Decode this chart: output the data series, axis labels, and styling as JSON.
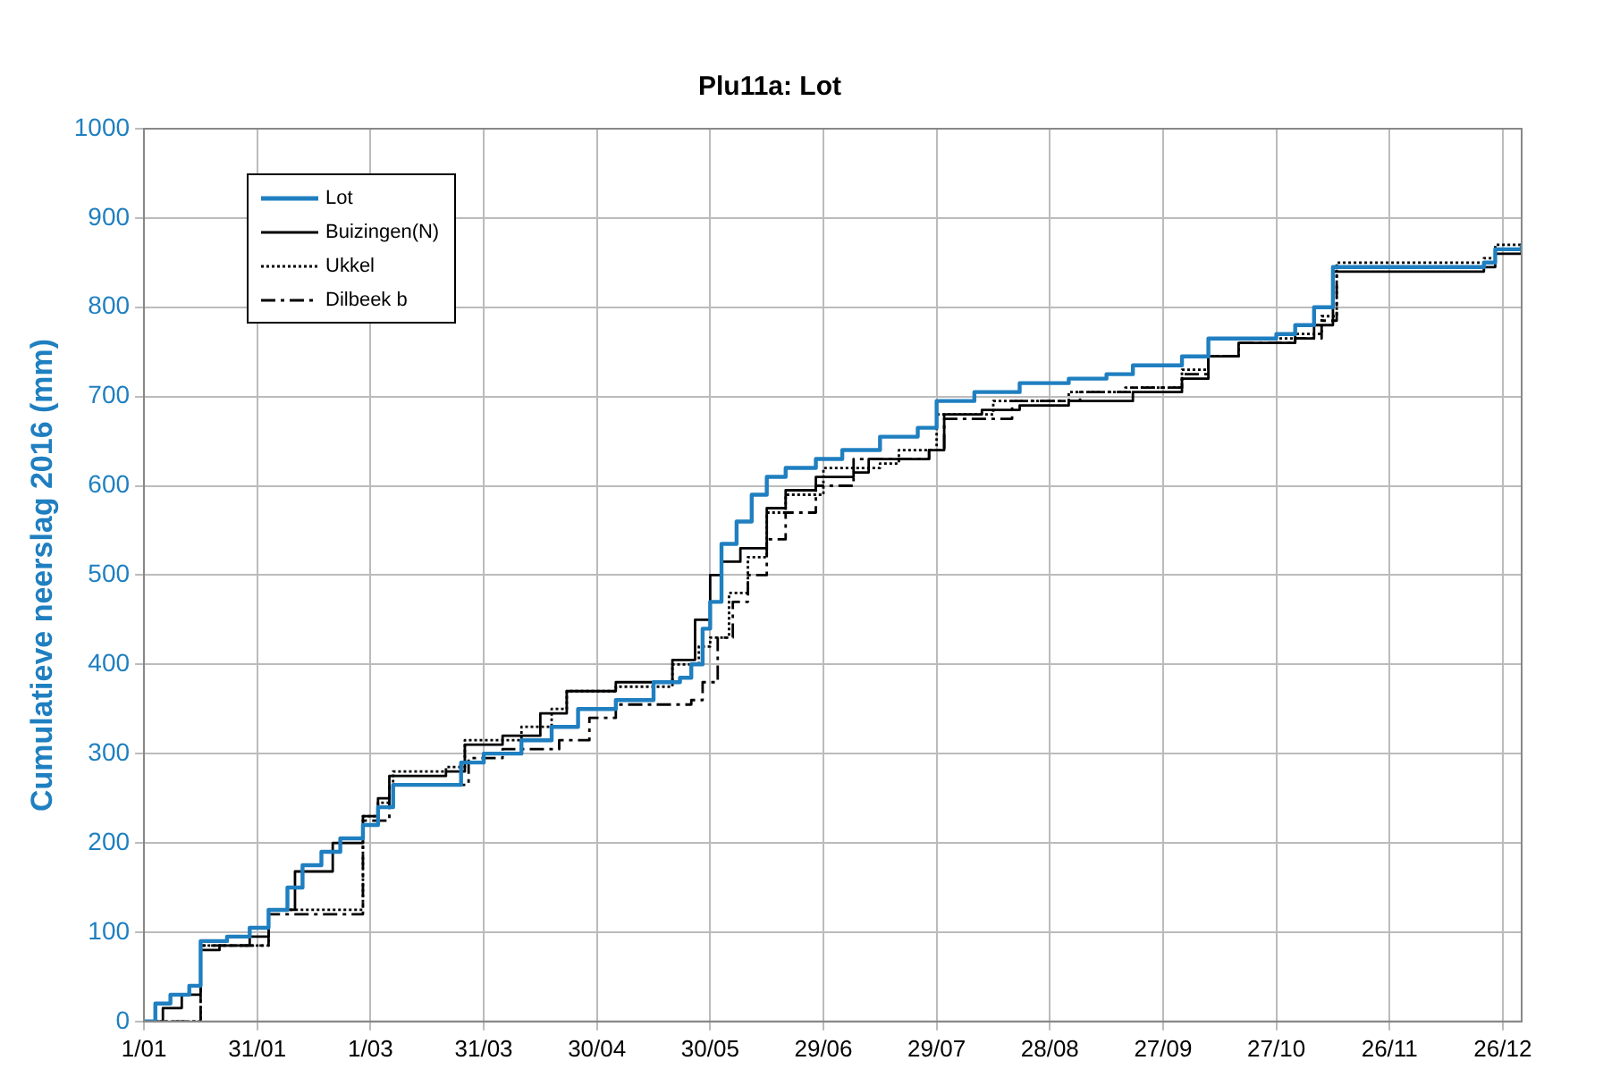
{
  "chart_data": {
    "type": "step",
    "title": "Plu11a: Lot",
    "ylabel": "Cumulatieve neerslag 2016 (mm)",
    "xlim": [
      "2016-01-01",
      "2016-12-31"
    ],
    "xticks": [
      {
        "value": "2016-01-01",
        "label": "1/01"
      },
      {
        "value": "2016-01-31",
        "label": "31/01"
      },
      {
        "value": "2016-03-01",
        "label": "1/03"
      },
      {
        "value": "2016-03-31",
        "label": "31/03"
      },
      {
        "value": "2016-04-30",
        "label": "30/04"
      },
      {
        "value": "2016-05-30",
        "label": "30/05"
      },
      {
        "value": "2016-06-29",
        "label": "29/06"
      },
      {
        "value": "2016-07-29",
        "label": "29/07"
      },
      {
        "value": "2016-08-28",
        "label": "28/08"
      },
      {
        "value": "2016-09-27",
        "label": "27/09"
      },
      {
        "value": "2016-10-27",
        "label": "27/10"
      },
      {
        "value": "2016-11-26",
        "label": "26/11"
      },
      {
        "value": "2016-12-26",
        "label": "26/12"
      }
    ],
    "ylim": [
      0,
      1000
    ],
    "yticks": [
      0,
      100,
      200,
      300,
      400,
      500,
      600,
      700,
      800,
      900,
      1000
    ],
    "grid": true,
    "legend": "top left",
    "series": [
      {
        "name": "Lot",
        "color": "#1f7fc0",
        "line_style": "solid",
        "x": [
          "2016-01-01",
          "2016-01-04",
          "2016-01-08",
          "2016-01-13",
          "2016-01-16",
          "2016-01-23",
          "2016-01-29",
          "2016-02-03",
          "2016-02-08",
          "2016-02-12",
          "2016-02-17",
          "2016-02-22",
          "2016-02-28",
          "2016-03-03",
          "2016-03-07",
          "2016-03-19",
          "2016-03-25",
          "2016-03-31",
          "2016-04-10",
          "2016-04-18",
          "2016-04-25",
          "2016-05-05",
          "2016-05-15",
          "2016-05-22",
          "2016-05-25",
          "2016-05-28",
          "2016-05-30",
          "2016-06-02",
          "2016-06-06",
          "2016-06-10",
          "2016-06-14",
          "2016-06-19",
          "2016-06-27",
          "2016-07-04",
          "2016-07-14",
          "2016-07-24",
          "2016-07-29",
          "2016-08-08",
          "2016-08-20",
          "2016-09-02",
          "2016-09-12",
          "2016-09-19",
          "2016-10-02",
          "2016-10-09",
          "2016-10-27",
          "2016-11-01",
          "2016-11-06",
          "2016-11-11",
          "2016-12-21",
          "2016-12-24",
          "2016-12-31"
        ],
        "values": [
          0,
          20,
          30,
          40,
          90,
          95,
          105,
          125,
          150,
          175,
          190,
          205,
          220,
          240,
          265,
          265,
          290,
          300,
          315,
          330,
          350,
          360,
          380,
          385,
          400,
          440,
          470,
          535,
          560,
          590,
          610,
          620,
          630,
          640,
          655,
          665,
          695,
          705,
          715,
          720,
          725,
          735,
          745,
          765,
          770,
          780,
          800,
          845,
          850,
          865,
          870
        ]
      },
      {
        "name": "Buizingen(N)",
        "color": "#000000",
        "line_style": "solid",
        "x": [
          "2016-01-01",
          "2016-01-06",
          "2016-01-11",
          "2016-01-16",
          "2016-01-21",
          "2016-01-29",
          "2016-02-03",
          "2016-02-10",
          "2016-02-20",
          "2016-02-28",
          "2016-03-03",
          "2016-03-06",
          "2016-03-21",
          "2016-03-26",
          "2016-04-05",
          "2016-04-15",
          "2016-04-22",
          "2016-05-05",
          "2016-05-20",
          "2016-05-26",
          "2016-05-30",
          "2016-06-02",
          "2016-06-07",
          "2016-06-14",
          "2016-06-19",
          "2016-06-27",
          "2016-07-07",
          "2016-07-11",
          "2016-07-27",
          "2016-07-31",
          "2016-08-10",
          "2016-08-20",
          "2016-09-02",
          "2016-09-19",
          "2016-10-02",
          "2016-10-09",
          "2016-10-17",
          "2016-11-01",
          "2016-11-06",
          "2016-11-11",
          "2016-12-21",
          "2016-12-24",
          "2016-12-31"
        ],
        "values": [
          0,
          15,
          30,
          80,
          85,
          95,
          125,
          168,
          200,
          230,
          250,
          275,
          280,
          310,
          320,
          345,
          370,
          380,
          405,
          450,
          500,
          515,
          530,
          575,
          595,
          610,
          615,
          630,
          640,
          680,
          685,
          690,
          695,
          705,
          720,
          745,
          760,
          765,
          780,
          840,
          845,
          860,
          865
        ]
      },
      {
        "name": "Ukkel",
        "color": "#000000",
        "line_style": "dotted",
        "x": [
          "2016-01-01",
          "2016-01-16",
          "2016-02-03",
          "2016-02-28",
          "2016-03-03",
          "2016-03-07",
          "2016-03-21",
          "2016-03-26",
          "2016-04-10",
          "2016-04-18",
          "2016-04-22",
          "2016-05-05",
          "2016-05-20",
          "2016-05-27",
          "2016-05-30",
          "2016-06-04",
          "2016-06-09",
          "2016-06-14",
          "2016-06-19",
          "2016-06-29",
          "2016-07-14",
          "2016-07-19",
          "2016-07-29",
          "2016-08-13",
          "2016-09-02",
          "2016-09-17",
          "2016-10-02",
          "2016-10-09",
          "2016-10-17",
          "2016-11-01",
          "2016-11-08",
          "2016-11-12",
          "2016-12-21",
          "2016-12-24",
          "2016-12-31"
        ],
        "values": [
          0,
          85,
          125,
          230,
          245,
          280,
          285,
          315,
          330,
          350,
          370,
          375,
          400,
          420,
          430,
          480,
          520,
          570,
          590,
          620,
          625,
          640,
          680,
          695,
          705,
          710,
          730,
          745,
          765,
          770,
          790,
          850,
          855,
          870,
          870
        ]
      },
      {
        "name": "Dilbeek b",
        "color": "#000000",
        "line_style": "dashed",
        "x": [
          "2016-01-01",
          "2016-01-16",
          "2016-02-03",
          "2016-02-28",
          "2016-03-06",
          "2016-03-21",
          "2016-03-27",
          "2016-04-05",
          "2016-04-20",
          "2016-04-28",
          "2016-05-05",
          "2016-05-25",
          "2016-05-28",
          "2016-06-01",
          "2016-06-05",
          "2016-06-09",
          "2016-06-14",
          "2016-06-19",
          "2016-06-27",
          "2016-07-07",
          "2016-07-27",
          "2016-07-31",
          "2016-08-18",
          "2016-09-05",
          "2016-09-19",
          "2016-10-02",
          "2016-10-09",
          "2016-10-17",
          "2016-11-01",
          "2016-11-08",
          "2016-11-12",
          "2016-12-21",
          "2016-12-24",
          "2016-12-31"
        ],
        "values": [
          0,
          85,
          120,
          225,
          265,
          265,
          295,
          305,
          315,
          340,
          355,
          360,
          380,
          430,
          470,
          500,
          540,
          570,
          600,
          630,
          640,
          675,
          695,
          705,
          710,
          725,
          745,
          760,
          765,
          785,
          845,
          850,
          865,
          868
        ]
      }
    ]
  }
}
